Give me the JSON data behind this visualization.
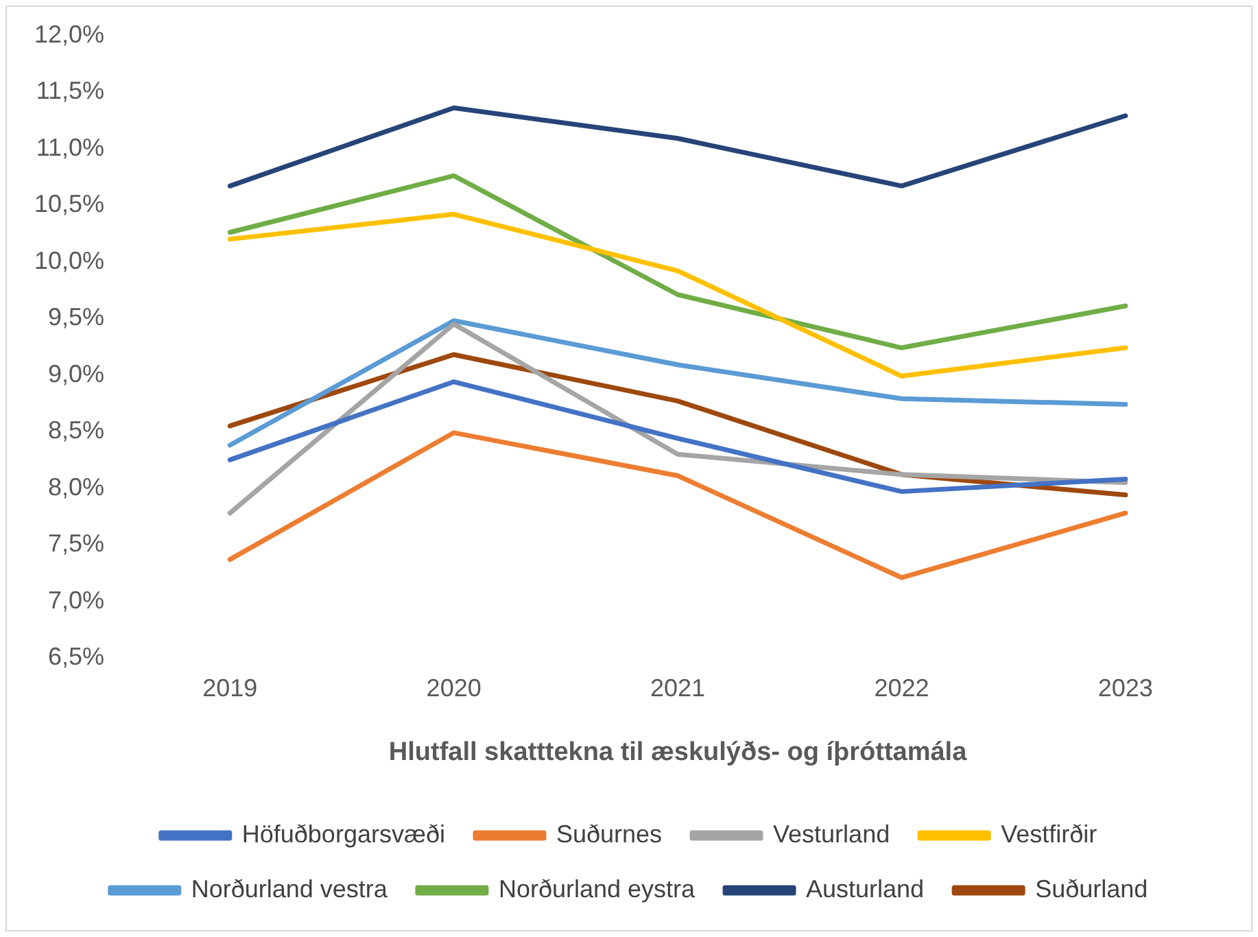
{
  "chart_data": {
    "type": "line",
    "xlabel": "Hlutfall skatttekna til æskulýðs- og íþróttamála",
    "categories": [
      "2019",
      "2020",
      "2021",
      "2022",
      "2023"
    ],
    "ylim": [
      6.5,
      12.0
    ],
    "yticks": [
      {
        "value": 6.5,
        "label": "6,5%"
      },
      {
        "value": 7.0,
        "label": "7,0%"
      },
      {
        "value": 7.5,
        "label": "7,5%"
      },
      {
        "value": 8.0,
        "label": "8,0%"
      },
      {
        "value": 8.5,
        "label": "8,5%"
      },
      {
        "value": 9.0,
        "label": "9,0%"
      },
      {
        "value": 9.5,
        "label": "9,5%"
      },
      {
        "value": 10.0,
        "label": "10,0%"
      },
      {
        "value": 10.5,
        "label": "10,5%"
      },
      {
        "value": 11.0,
        "label": "11,0%"
      },
      {
        "value": 11.5,
        "label": "11,5%"
      },
      {
        "value": 12.0,
        "label": "12,0%"
      }
    ],
    "grid": false,
    "legend": "bottom",
    "marker": "none",
    "line_style": "solid",
    "series": [
      {
        "name": "Höfuðborgarsvæði",
        "color": "#4472c4",
        "values": [
          8.25,
          8.94,
          8.44,
          7.97,
          8.08
        ]
      },
      {
        "name": "Suðurnes",
        "color": "#ed7d31",
        "values": [
          7.37,
          8.49,
          8.11,
          7.21,
          7.78
        ]
      },
      {
        "name": "Vesturland",
        "color": "#a5a5a5",
        "values": [
          7.78,
          9.45,
          8.3,
          8.12,
          8.05
        ]
      },
      {
        "name": "Vestfirðir",
        "color": "#ffc000",
        "values": [
          10.2,
          10.42,
          9.92,
          8.99,
          9.24
        ]
      },
      {
        "name": "Norðurland vestra",
        "color": "#5b9bd5",
        "values": [
          8.38,
          9.48,
          9.09,
          8.79,
          8.74
        ]
      },
      {
        "name": "Norðurland eystra",
        "color": "#70ad47",
        "values": [
          10.26,
          10.76,
          9.71,
          9.24,
          9.61
        ]
      },
      {
        "name": "Austurland",
        "color": "#264478",
        "values": [
          10.67,
          11.36,
          11.09,
          10.67,
          11.29
        ]
      },
      {
        "name": "Suðurland",
        "color": "#9e480e",
        "values": [
          8.55,
          9.18,
          8.77,
          8.12,
          7.94
        ]
      }
    ]
  }
}
